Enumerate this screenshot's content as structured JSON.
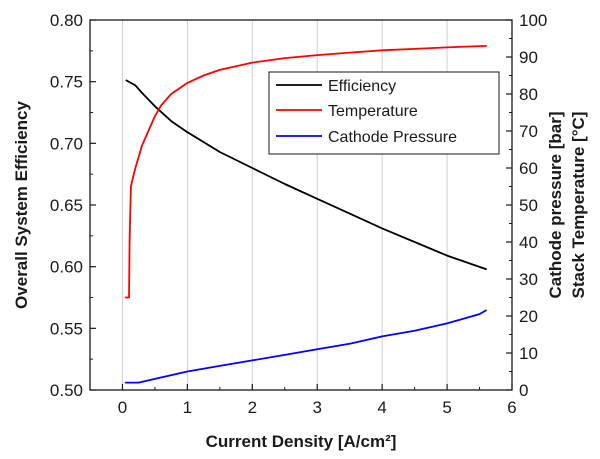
{
  "chart_data": {
    "type": "line",
    "xlabel": "Current Density [A/cm²]",
    "ylabel_left": "Overall System Efficiency",
    "ylabel_right": [
      "Cathode pressure [bar]",
      "Stack Temperature [°C]"
    ],
    "xlim": [
      -0.5,
      6
    ],
    "ylim_left": [
      0.5,
      0.8
    ],
    "ylim_right": [
      0,
      100
    ],
    "x_ticks": [
      "0",
      "1",
      "2",
      "3",
      "4",
      "5",
      "6"
    ],
    "y_left_ticks": [
      "0.50",
      "0.55",
      "0.60",
      "0.65",
      "0.70",
      "0.75",
      "0.80"
    ],
    "y_right_ticks": [
      "0",
      "10",
      "20",
      "30",
      "40",
      "50",
      "60",
      "70",
      "80",
      "90",
      "100"
    ],
    "grid": "vertical",
    "legend": {
      "position": "top-right",
      "entries": [
        "Efficiency",
        "Temperature",
        "Cathode Pressure"
      ]
    },
    "series": [
      {
        "name": "Efficiency",
        "axis": "left",
        "color": "#000000",
        "x": [
          0.06,
          0.2,
          0.3,
          0.5,
          0.75,
          1.0,
          1.5,
          2.0,
          2.5,
          3.0,
          3.5,
          4.0,
          4.5,
          5.0,
          5.6
        ],
        "y": [
          0.751,
          0.747,
          0.741,
          0.73,
          0.718,
          0.709,
          0.693,
          0.68,
          0.667,
          0.655,
          0.643,
          0.631,
          0.62,
          0.609,
          0.598
        ]
      },
      {
        "name": "Temperature",
        "axis": "right",
        "color": "#ff0000",
        "x": [
          0.05,
          0.1,
          0.11,
          0.13,
          0.17,
          0.2,
          0.25,
          0.3,
          0.4,
          0.5,
          0.6,
          0.75,
          1.0,
          1.25,
          1.5,
          2.0,
          2.5,
          3.0,
          3.5,
          4.0,
          4.5,
          5.0,
          5.6
        ],
        "y": [
          25,
          25,
          40,
          55,
          58,
          60,
          63,
          66,
          70,
          74,
          77,
          80,
          83,
          85,
          86.5,
          88.5,
          89.7,
          90.5,
          91.2,
          91.8,
          92.2,
          92.6,
          93.0
        ]
      },
      {
        "name": "Cathode Pressure",
        "axis": "right",
        "color": "#0000ff",
        "x": [
          0.05,
          0.25,
          0.5,
          1.0,
          1.5,
          2.0,
          2.5,
          3.0,
          3.5,
          4.0,
          4.5,
          5.0,
          5.5,
          5.6
        ],
        "y": [
          2.0,
          2.0,
          3.0,
          5.0,
          6.5,
          8.0,
          9.5,
          11.0,
          12.5,
          14.5,
          16.0,
          18.0,
          20.5,
          21.5
        ]
      }
    ]
  }
}
